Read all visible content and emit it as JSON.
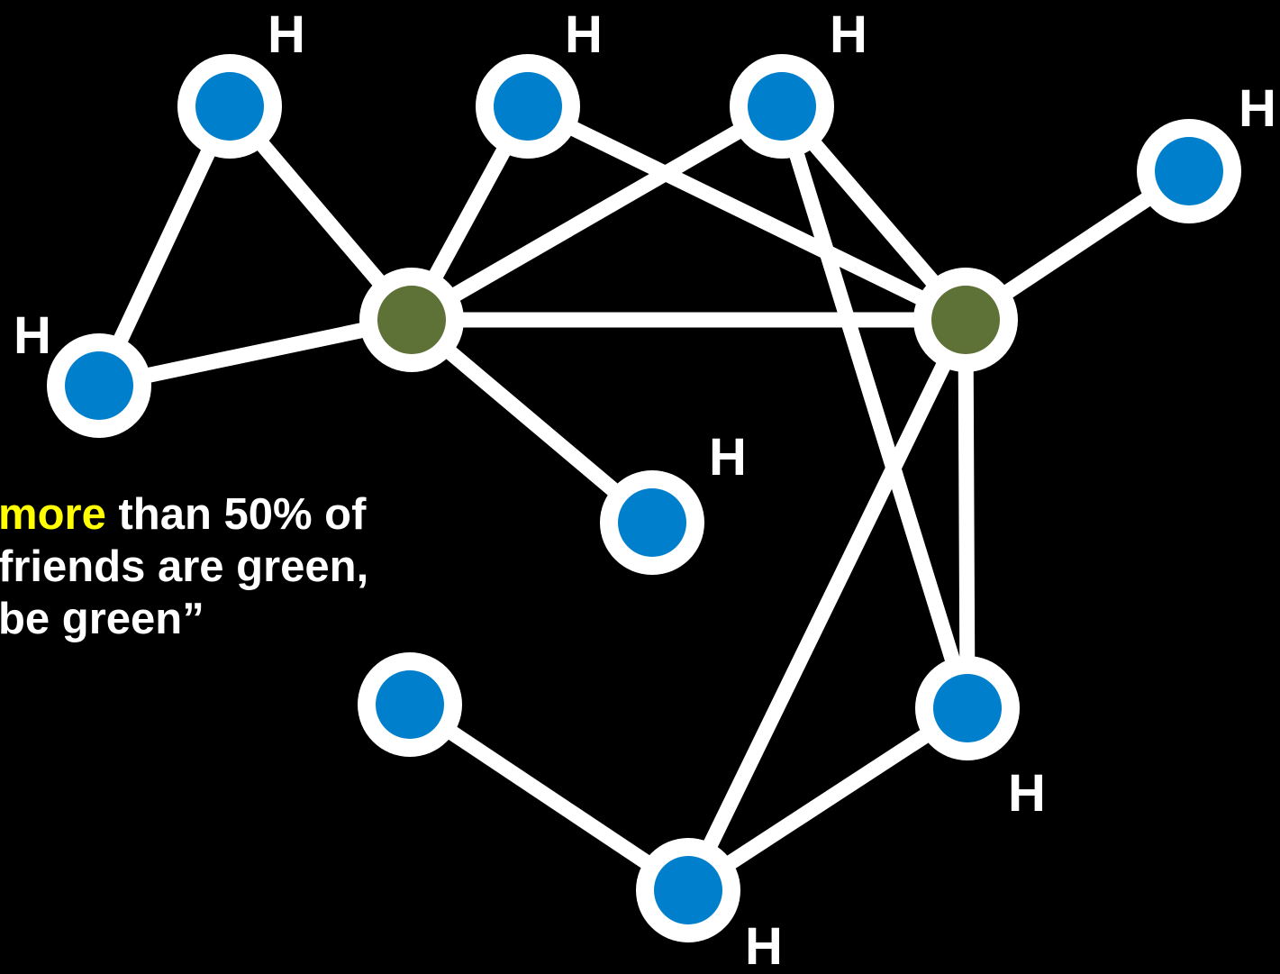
{
  "colors": {
    "background": "#000000",
    "edge": "#ffffff",
    "blue_node": "#0080cc",
    "green_node": "#5e7136",
    "highlight": "#ffff00"
  },
  "diagram": {
    "node_label": "H",
    "nodes": [
      {
        "id": "n1",
        "color": "blue",
        "label": "H"
      },
      {
        "id": "n2",
        "color": "blue",
        "label": "H"
      },
      {
        "id": "n3",
        "color": "blue",
        "label": "H"
      },
      {
        "id": "n4",
        "color": "blue",
        "label": "H"
      },
      {
        "id": "n5",
        "color": "blue",
        "label": "H"
      },
      {
        "id": "n6",
        "color": "green",
        "label": ""
      },
      {
        "id": "n7",
        "color": "green",
        "label": ""
      },
      {
        "id": "n8",
        "color": "blue",
        "label": "H"
      },
      {
        "id": "n9",
        "color": "blue",
        "label": ""
      },
      {
        "id": "n10",
        "color": "blue",
        "label": "H"
      },
      {
        "id": "n11",
        "color": "blue",
        "label": "H"
      }
    ],
    "edges": [
      [
        "n1",
        "n5"
      ],
      [
        "n1",
        "n6"
      ],
      [
        "n6",
        "n5"
      ],
      [
        "n6",
        "n2"
      ],
      [
        "n6",
        "n3"
      ],
      [
        "n6",
        "n7"
      ],
      [
        "n6",
        "n8"
      ],
      [
        "n2",
        "n7"
      ],
      [
        "n3",
        "n7"
      ],
      [
        "n3",
        "n10"
      ],
      [
        "n7",
        "n4"
      ],
      [
        "n7",
        "n10"
      ],
      [
        "n7",
        "n11"
      ],
      [
        "n9",
        "n11"
      ],
      [
        "n11",
        "n10"
      ]
    ]
  },
  "rule_text": {
    "line1_highlight": "more",
    "line1_rest": " than 50% of",
    "line2": "friends are green,",
    "line3": "be green”"
  }
}
